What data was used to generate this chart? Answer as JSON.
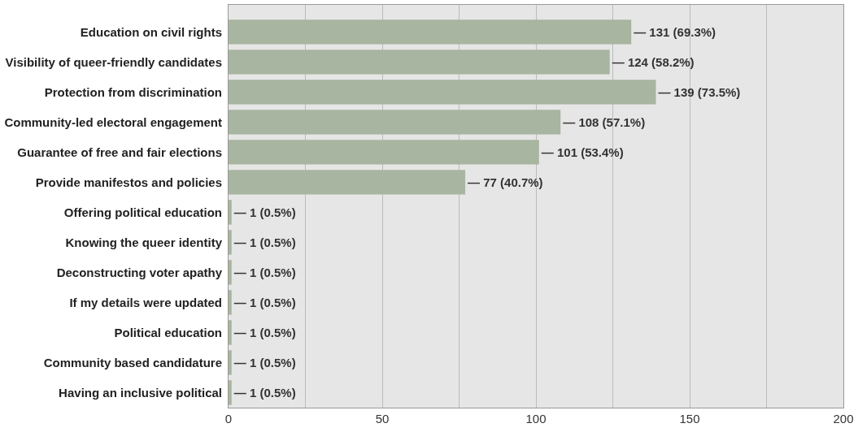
{
  "chart_data": {
    "type": "bar",
    "orientation": "horizontal",
    "categories": [
      "Education on civil rights",
      "Visibility of queer-friendly candidates",
      "Protection from discrimination",
      "Community-led electoral engagement",
      "Guarantee of free and fair elections",
      "Provide manifestos and policies",
      "Offering political education",
      "Knowing the queer identity",
      "Deconstructing voter apathy",
      "If my details were updated",
      "Political education",
      "Community based candidature",
      "Having an inclusive political"
    ],
    "values": [
      131,
      124,
      139,
      108,
      101,
      77,
      1,
      1,
      1,
      1,
      1,
      1,
      1
    ],
    "value_labels": [
      "— 131 (69.3%)",
      "— 124 (58.2%)",
      "— 139 (73.5%)",
      "— 108 (57.1%)",
      "— 101 (53.4%)",
      "— 77 (40.7%)",
      "— 1 (0.5%)",
      "— 1 (0.5%)",
      "— 1 (0.5%)",
      "— 1 (0.5%)",
      "— 1 (0.5%)",
      "— 1 (0.5%)",
      "— 1 (0.5%)"
    ],
    "color": "#a8b5a0",
    "xlim": [
      0,
      200
    ],
    "xticks": [
      0,
      {
        "value": 25,
        "label": null
      },
      50,
      {
        "value": 75,
        "label": null
      },
      100,
      {
        "value": 125,
        "label": null
      },
      150,
      {
        "value": 175,
        "label": null
      },
      200
    ],
    "grid": "x"
  }
}
